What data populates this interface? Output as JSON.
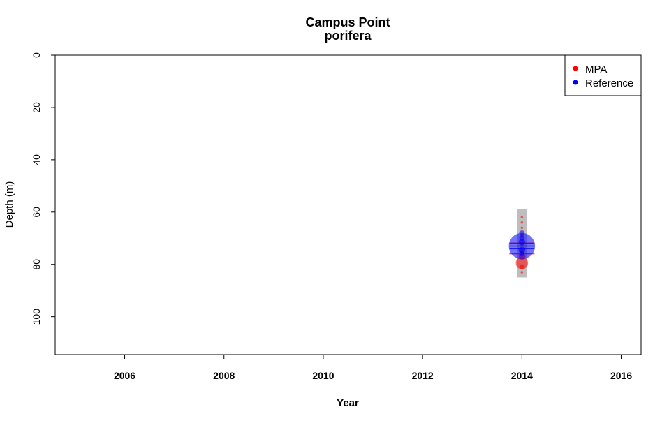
{
  "chart_data": {
    "type": "scatter",
    "title": "Campus Point",
    "subtitle": "porifera",
    "xlabel": "Year",
    "ylabel": "Depth (m)",
    "xlim": [
      2004.6,
      2016.4
    ],
    "ylim": [
      0,
      114.5
    ],
    "y_inverted": true,
    "grid": false,
    "xticks": [
      2006,
      2008,
      2010,
      2012,
      2014,
      2016
    ],
    "yticks": [
      0,
      20,
      40,
      60,
      80,
      100
    ],
    "legend": {
      "placement": "top-right",
      "entries": [
        {
          "label": "MPA",
          "color": "#ff0000"
        },
        {
          "label": "Reference",
          "color": "#0000ff"
        }
      ]
    },
    "range_bar": {
      "x": 2014,
      "y_min": 59,
      "y_max": 85,
      "color": "#bebebe"
    },
    "series": [
      {
        "name": "MPA",
        "color": "#ff0000",
        "points": [
          {
            "x": 2014,
            "y": 62,
            "size": 1
          },
          {
            "x": 2014,
            "y": 64,
            "size": 1
          },
          {
            "x": 2014,
            "y": 66,
            "size": 1
          },
          {
            "x": 2014,
            "y": 69,
            "size": 2
          },
          {
            "x": 2014,
            "y": 72,
            "size": 2
          },
          {
            "x": 2014,
            "y": 75,
            "size": 3
          },
          {
            "x": 2014,
            "y": 77,
            "size": 4
          },
          {
            "x": 2014,
            "y": 79.5,
            "size": 8
          },
          {
            "x": 2014,
            "y": 81,
            "size": 3
          },
          {
            "x": 2014,
            "y": 83,
            "size": 1
          }
        ],
        "hlines": [
          71.5,
          76
        ]
      },
      {
        "name": "Reference",
        "color": "#0000ff",
        "points": [
          {
            "x": 2014,
            "y": 68,
            "size": 3
          },
          {
            "x": 2014,
            "y": 70,
            "size": 3
          },
          {
            "x": 2014,
            "y": 71.5,
            "size": 4
          },
          {
            "x": 2014,
            "y": 73,
            "size": 18
          },
          {
            "x": 2014,
            "y": 74.5,
            "size": 4
          },
          {
            "x": 2014,
            "y": 76,
            "size": 3
          }
        ],
        "hlines": [
          72,
          74
        ]
      }
    ],
    "mean_lines": [
      73
    ]
  }
}
